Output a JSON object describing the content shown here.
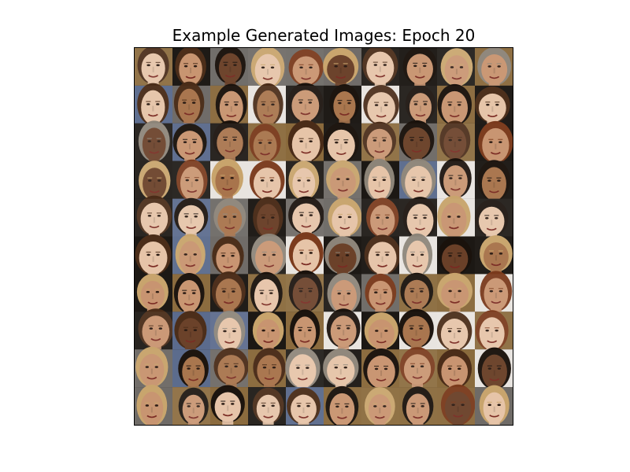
{
  "figure": {
    "title": "Example Generated Images: Epoch 20",
    "rows": 10,
    "columns": 10
  },
  "palette": {
    "dark_bg": "#1c1814",
    "warm_bg": "#8a6a3c",
    "light_bg": "#e8e4df",
    "grey_bg": "#6e6a66",
    "blue_bg": "#5a6a8c",
    "skin_light": "#e6c4a8",
    "skin_medium": "#c89470",
    "skin_tan": "#a8744c",
    "skin_dark": "#6a4028",
    "hair_black": "#1a120c",
    "hair_brown": "#4a2c18",
    "hair_auburn": "#7a3a1c",
    "hair_blonde": "#c8a46c",
    "hair_grey": "#8c8478"
  }
}
